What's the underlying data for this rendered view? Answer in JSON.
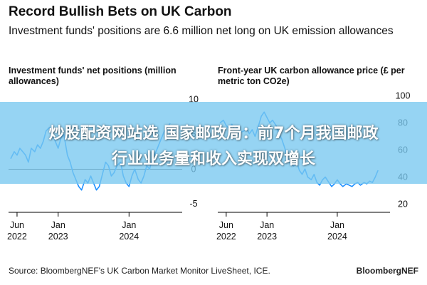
{
  "title": "Record Bullish Bets on UK Carbon",
  "subtitle": "Investment funds' positions are 6.6 million net long on UK emission allowances",
  "overlay": {
    "line1": "炒股配资网站选 国家邮政局：前7个月我国邮政",
    "line2": "行业业务量和收入实现双增长"
  },
  "footer": {
    "source": "Source: BloombergNEF's UK Carbon Market Monitor LiveSheet, ICE.",
    "brand": "BloombergNEF"
  },
  "colors": {
    "line": "#1e90ff",
    "text": "#111111",
    "overlay": "#78c8f0"
  },
  "chart_data": [
    {
      "type": "line",
      "title": "Investment funds' net positions (million allowances)",
      "x_tick_labels": [
        {
          "month": "Jun",
          "year": "2022",
          "t": 2022.42
        },
        {
          "month": "Jan",
          "year": "2023",
          "t": 2023.0
        },
        {
          "month": "Jan",
          "year": "2024",
          "t": 2024.0
        }
      ],
      "xlim": [
        2022.3,
        2024.75
      ],
      "ylim": [
        -6,
        11.5
      ],
      "y_ticks": [
        10,
        5,
        0,
        -5
      ],
      "zero_line": 0,
      "series": [
        {
          "x": [
            2022.33,
            2022.38,
            2022.42,
            2022.46,
            2022.5,
            2022.54,
            2022.58,
            2022.62,
            2022.67,
            2022.71,
            2022.75,
            2022.79,
            2022.83,
            2022.88,
            2022.92,
            2022.96,
            2023.0,
            2023.04,
            2023.08,
            2023.13,
            2023.17,
            2023.21,
            2023.25,
            2023.29,
            2023.33,
            2023.38,
            2023.42,
            2023.46,
            2023.5,
            2023.54,
            2023.58,
            2023.63,
            2023.67,
            2023.71,
            2023.75,
            2023.79,
            2023.83,
            2023.88,
            2023.92,
            2023.96,
            2024.0,
            2024.04,
            2024.08,
            2024.13,
            2024.17,
            2024.21,
            2024.25,
            2024.29,
            2024.33,
            2024.38,
            2024.42,
            2024.46,
            2024.5,
            2024.54,
            2024.58
          ],
          "y": [
            1.5,
            2.5,
            2.0,
            3.0,
            2.5,
            2.0,
            1.0,
            3.0,
            2.5,
            3.5,
            3.0,
            4.0,
            5.5,
            6.0,
            5.0,
            4.0,
            3.0,
            4.5,
            5.0,
            2.0,
            1.0,
            -0.5,
            -1.5,
            -2.5,
            -3.0,
            -1.5,
            -2.0,
            -1.0,
            -2.0,
            -3.0,
            -2.5,
            -0.5,
            1.0,
            0.5,
            -1.0,
            -0.5,
            0.5,
            1.0,
            -1.0,
            -2.0,
            -2.5,
            -1.0,
            0.0,
            -1.5,
            -2.0,
            -1.0,
            0.5,
            0.0,
            1.5,
            2.5,
            3.5,
            4.5,
            5.5,
            6.0,
            6.6
          ]
        }
      ]
    },
    {
      "type": "line",
      "title": "Front-year UK carbon allowance price (£ per metric ton CO2e)",
      "x_tick_labels": [
        {
          "month": "Jun",
          "year": "2022",
          "t": 2022.42
        },
        {
          "month": "Jan",
          "year": "2023",
          "t": 2023.0
        },
        {
          "month": "Jan",
          "year": "2024",
          "t": 2024.0
        }
      ],
      "xlim": [
        2022.3,
        2024.75
      ],
      "ylim": [
        15,
        105
      ],
      "y_ticks": [
        100,
        80,
        60,
        40,
        20
      ],
      "series": [
        {
          "x": [
            2022.33,
            2022.38,
            2022.42,
            2022.46,
            2022.5,
            2022.54,
            2022.58,
            2022.62,
            2022.67,
            2022.71,
            2022.75,
            2022.79,
            2022.83,
            2022.88,
            2022.92,
            2022.96,
            2023.0,
            2023.04,
            2023.08,
            2023.13,
            2023.17,
            2023.21,
            2023.25,
            2023.29,
            2023.33,
            2023.38,
            2023.42,
            2023.46,
            2023.5,
            2023.54,
            2023.58,
            2023.63,
            2023.67,
            2023.71,
            2023.75,
            2023.79,
            2023.83,
            2023.88,
            2023.92,
            2023.96,
            2024.0,
            2024.04,
            2024.08,
            2024.13,
            2024.17,
            2024.21,
            2024.25,
            2024.29,
            2024.33,
            2024.38,
            2024.42,
            2024.46,
            2024.5,
            2024.54,
            2024.58
          ],
          "y": [
            80,
            82,
            78,
            76,
            79,
            75,
            77,
            73,
            74,
            76,
            72,
            75,
            70,
            78,
            85,
            88,
            84,
            80,
            82,
            78,
            72,
            68,
            62,
            55,
            50,
            48,
            52,
            45,
            42,
            46,
            40,
            38,
            42,
            36,
            34,
            38,
            40,
            36,
            33,
            35,
            38,
            35,
            33,
            35,
            34,
            33,
            35,
            36,
            34,
            36,
            35,
            37,
            36,
            40,
            45
          ]
        }
      ]
    }
  ]
}
